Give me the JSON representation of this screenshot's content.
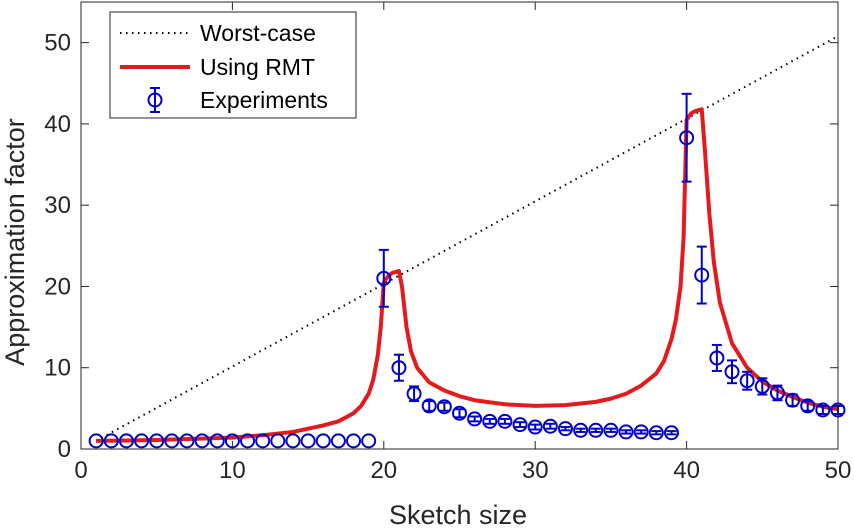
{
  "chart_data": {
    "type": "line",
    "xlabel": "Sketch size",
    "ylabel": "Approximation factor",
    "xlim": [
      0,
      50
    ],
    "ylim": [
      0,
      55
    ],
    "xticks": [
      0,
      10,
      20,
      30,
      40,
      50
    ],
    "yticks": [
      0,
      10,
      20,
      30,
      40,
      50
    ],
    "grid": false,
    "legend_position": "top-left",
    "legend": [
      "Worst-case",
      "Using RMT",
      "Experiments"
    ],
    "series": [
      {
        "name": "Worst-case",
        "style": "dotted",
        "color": "#000000",
        "x": [
          1,
          50
        ],
        "y": [
          1,
          50.8
        ]
      },
      {
        "name": "Using RMT",
        "style": "solid",
        "color": "#e41a1c",
        "x": [
          1,
          5,
          10,
          12,
          14,
          15,
          16,
          17,
          18,
          18.5,
          19,
          19.3,
          19.6,
          19.8,
          20,
          20.3,
          20.6,
          21,
          21.2,
          21.5,
          21.8,
          22.2,
          23,
          24,
          25,
          26,
          28,
          30,
          32,
          34,
          35,
          36,
          37,
          38,
          38.5,
          39,
          39.3,
          39.6,
          39.8,
          40,
          40.3,
          40.6,
          41,
          41.2,
          41.5,
          41.8,
          42.2,
          43,
          44,
          45,
          46,
          47,
          48,
          49,
          50
        ],
        "y": [
          1,
          1.1,
          1.4,
          1.7,
          2.1,
          2.5,
          2.9,
          3.4,
          4.4,
          5.3,
          6.8,
          8.5,
          11.5,
          15,
          20.5,
          21.3,
          21.7,
          21.9,
          20,
          15,
          12,
          10,
          8.2,
          7.2,
          6.5,
          6.0,
          5.5,
          5.3,
          5.4,
          5.8,
          6.2,
          6.8,
          7.8,
          9.3,
          10.8,
          13.5,
          16,
          20,
          26,
          40.5,
          41.3,
          41.6,
          41.8,
          37,
          29,
          23,
          18,
          13,
          10,
          8.3,
          7.2,
          6.4,
          5.7,
          5.2,
          4.9
        ]
      },
      {
        "name": "Experiments",
        "style": "markers-errorbars",
        "color": "#0000cc",
        "x": [
          1,
          2,
          3,
          4,
          5,
          6,
          7,
          8,
          9,
          10,
          11,
          12,
          13,
          14,
          15,
          16,
          17,
          18,
          19,
          20,
          21,
          22,
          23,
          24,
          25,
          26,
          27,
          28,
          29,
          30,
          31,
          32,
          33,
          34,
          35,
          36,
          37,
          38,
          39,
          40,
          41,
          42,
          43,
          44,
          45,
          46,
          47,
          48,
          49,
          50
        ],
        "y": [
          1,
          1,
          1,
          1,
          1,
          1,
          1,
          1,
          1,
          1,
          1,
          1,
          1,
          1,
          1,
          1,
          1,
          1,
          1,
          21,
          10,
          6.8,
          5.3,
          5.2,
          4.4,
          3.7,
          3.4,
          3.4,
          3.0,
          2.7,
          2.8,
          2.5,
          2.3,
          2.3,
          2.3,
          2.1,
          2.1,
          2.0,
          2.0,
          38.3,
          21.4,
          11.2,
          9.5,
          8.4,
          7.7,
          6.9,
          6.0,
          5.3,
          4.8,
          4.8
        ],
        "err": [
          0,
          0,
          0,
          0,
          0,
          0,
          0,
          0,
          0,
          0,
          0,
          0,
          0,
          0,
          0,
          0,
          0,
          0,
          0,
          3.5,
          1.6,
          0.9,
          0.6,
          0.5,
          0.5,
          0.3,
          0.3,
          0.3,
          0.3,
          0.3,
          0.3,
          0.2,
          0.2,
          0.2,
          0.2,
          0.2,
          0.2,
          0.2,
          0.2,
          5.4,
          3.5,
          1.6,
          1.4,
          1.1,
          1.0,
          0.9,
          0.7,
          0.6,
          0.5,
          0.5
        ]
      }
    ]
  }
}
